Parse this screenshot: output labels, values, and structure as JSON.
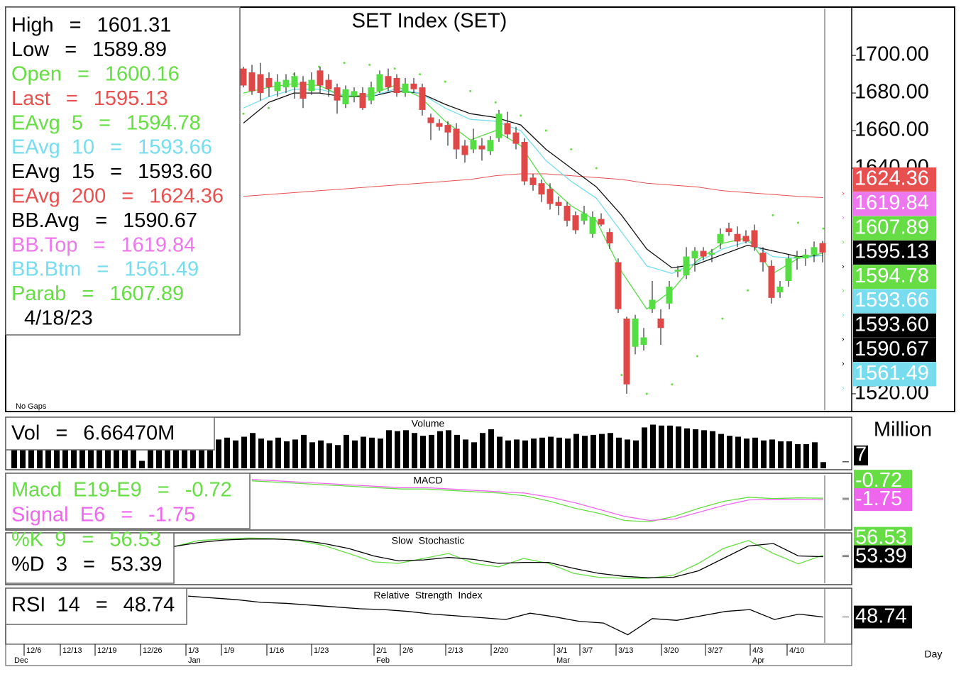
{
  "chart_data": {
    "type": "candlestick",
    "title": "SET Index (SET)",
    "note": "No Gaps",
    "date": "4/18/23",
    "equals": "=",
    "info": [
      {
        "label": "High",
        "value": "1601.31",
        "color": "#000000"
      },
      {
        "label": "Low",
        "value": "1589.89",
        "color": "#000000"
      },
      {
        "label": "Open",
        "value": "1600.16",
        "color": "#66dd44"
      },
      {
        "label": "Last",
        "value": "1595.13",
        "color": "#e85050",
        "box": "#000000"
      },
      {
        "label": "EAvg  5",
        "value": "1594.78",
        "color": "#66dd44",
        "box": "#66dd44"
      },
      {
        "label": "EAvg  10",
        "value": "1593.66",
        "color": "#77ddee",
        "box": "#77ddee"
      },
      {
        "label": "EAvg  15",
        "value": "1593.60",
        "color": "#000000",
        "box": "#000000"
      },
      {
        "label": "EAvg  200",
        "value": "1624.36",
        "color": "#e85050",
        "box": "#e85050"
      },
      {
        "label": "BB.Avg",
        "value": "1590.67",
        "color": "#000000",
        "box": "#000000"
      },
      {
        "label": "BB.Top",
        "value": "1619.84",
        "color": "#ee77ee",
        "box": "#ee77ee"
      },
      {
        "label": "BB.Btm",
        "value": "1561.49",
        "color": "#77ddee",
        "box": "#77ddee"
      },
      {
        "label": "Parab",
        "value": "1607.89",
        "color": "#66dd44",
        "box": "#66dd44"
      }
    ],
    "ylim": [
      1511.3,
      1725.7
    ],
    "yticks": [
      {
        "value": 1520,
        "label": "1520.00"
      },
      {
        "value": 1640,
        "label": "1640.00"
      },
      {
        "value": 1660,
        "label": "1660.00"
      },
      {
        "value": 1680,
        "label": "1680.00"
      },
      {
        "value": 1700,
        "label": "1700.00"
      }
    ],
    "up_color": "#55dd44",
    "down_color": "#e04848",
    "candles": {
      "open": [
        1693,
        1691,
        1690,
        1688,
        1681,
        1683,
        1683,
        1686,
        1681,
        1692,
        1687,
        1683,
        1674,
        1678,
        1680,
        1676,
        1681,
        1689,
        1688,
        1680,
        1685,
        1683,
        1667,
        1664,
        1663,
        1661,
        1652,
        1650,
        1652,
        1649,
        1656,
        1664,
        1659,
        1654,
        1635,
        1632,
        1629,
        1622,
        1620,
        1615,
        1612,
        1605,
        1613,
        1606,
        1590,
        1560,
        1545,
        1546,
        1565,
        1560,
        1568,
        1585,
        1583,
        1592,
        1596,
        1594,
        1600,
        1608,
        1605,
        1604,
        1607,
        1595,
        1588,
        1574,
        1580,
        1592,
        1592,
        1594,
        1600.16
      ],
      "high": [
        1694,
        1695,
        1696,
        1691,
        1690,
        1690,
        1691,
        1689,
        1691,
        1694,
        1690,
        1685,
        1684,
        1683,
        1683,
        1686,
        1692,
        1693,
        1690,
        1688,
        1688,
        1685,
        1669,
        1666,
        1665,
        1664,
        1655,
        1661,
        1656,
        1657,
        1671,
        1670,
        1662,
        1656,
        1637,
        1634,
        1632,
        1625,
        1622,
        1617,
        1620,
        1617,
        1616,
        1608,
        1592,
        1561,
        1562,
        1555,
        1580,
        1565,
        1580,
        1588,
        1598,
        1598,
        1598,
        1597,
        1608,
        1611,
        1609,
        1607,
        1610,
        1598,
        1591,
        1580,
        1594,
        1596,
        1597,
        1601,
        1601.31
      ],
      "low": [
        1683,
        1679,
        1676,
        1678,
        1678,
        1680,
        1677,
        1672,
        1679,
        1680,
        1678,
        1669,
        1672,
        1675,
        1671,
        1674,
        1680,
        1681,
        1678,
        1678,
        1680,
        1668,
        1655,
        1660,
        1652,
        1645,
        1643,
        1648,
        1644,
        1647,
        1654,
        1656,
        1650,
        1631,
        1628,
        1622,
        1618,
        1615,
        1609,
        1605,
        1610,
        1603,
        1609,
        1597,
        1563,
        1520,
        1541,
        1543,
        1563,
        1546,
        1565,
        1582,
        1581,
        1585,
        1591,
        1590,
        1597,
        1604,
        1598,
        1600,
        1596,
        1585,
        1568,
        1571,
        1577,
        1586,
        1588,
        1590,
        1589.89
      ],
      "close": [
        1684,
        1681,
        1680,
        1683,
        1686,
        1687,
        1689,
        1677,
        1687,
        1684,
        1682,
        1676,
        1682,
        1681,
        1672,
        1683,
        1690,
        1683,
        1680,
        1685,
        1682,
        1671,
        1664,
        1662,
        1659,
        1650,
        1647,
        1655,
        1650,
        1655,
        1669,
        1658,
        1653,
        1633,
        1631,
        1626,
        1621,
        1620,
        1612,
        1607,
        1616,
        1614,
        1610,
        1600,
        1565,
        1525,
        1560,
        1550,
        1570,
        1555,
        1577,
        1586,
        1593,
        1596,
        1593,
        1595,
        1605,
        1606,
        1601,
        1601,
        1598,
        1590,
        1571,
        1577,
        1592,
        1593,
        1594,
        1598,
        1595.13
      ]
    },
    "overlays": [
      {
        "style": "line",
        "color": "#e85050",
        "width": 1,
        "values": [
          1625,
          1626,
          1627,
          1628,
          1629,
          1630,
          1631,
          1632,
          1633,
          1634,
          1636,
          1637,
          1637,
          1636,
          1635,
          1634,
          1632,
          1631,
          1630,
          1628,
          1627,
          1626,
          1625,
          1624.36
        ]
      },
      {
        "style": "line",
        "color": "#111111",
        "width": 1.3,
        "values": [
          1664,
          1675,
          1680,
          1680,
          1678,
          1678,
          1681,
          1680,
          1674,
          1669,
          1667,
          1663,
          1650,
          1640,
          1630,
          1615,
          1597,
          1587,
          1589,
          1594,
          1599,
          1596,
          1593,
          1593.6
        ]
      },
      {
        "style": "line",
        "color": "#77ddee",
        "width": 1.3,
        "values": [
          1672,
          1678,
          1682,
          1682,
          1679,
          1678,
          1682,
          1680,
          1672,
          1666,
          1665,
          1660,
          1644,
          1633,
          1624,
          1606,
          1588,
          1584,
          1590,
          1597,
          1601,
          1593,
          1592,
          1593.66
        ]
      },
      {
        "style": "line",
        "color": "#55dd44",
        "width": 1.3,
        "values": [
          1680,
          1683,
          1685,
          1684,
          1678,
          1679,
          1684,
          1678,
          1665,
          1655,
          1660,
          1652,
          1632,
          1620,
          1612,
          1585,
          1565,
          1575,
          1591,
          1600,
          1603,
          1584,
          1592,
          1594.78
        ]
      },
      {
        "style": "dots",
        "color": "#66dd44",
        "width": 1.5,
        "values": [
          1669,
          1672,
          1690,
          1694,
          1696,
          1695,
          1693,
          1690,
          1686,
          1681,
          1675,
          1668,
          1660,
          1650,
          1640,
          1530,
          1520,
          1525,
          1540,
          1560,
          1575,
          1615,
          1611,
          1607.89
        ]
      }
    ],
    "x_labels": [
      "12/6",
      "12/13",
      "12/19",
      "12/26",
      "1/3",
      "1/9",
      "1/16",
      "1/23",
      "2/1",
      "2/6",
      "2/13",
      "2/20",
      "3/1",
      "3/7",
      "3/13",
      "3/20",
      "3/27",
      "4/3",
      "4/10"
    ],
    "months": [
      "Dec",
      "Jan",
      "Feb",
      "Mar",
      "Apr"
    ],
    "x_title": "Day",
    "volume": {
      "title": "Volume",
      "label": "Vol",
      "readout": "6.66470M",
      "unit": "Million",
      "color": "#000000",
      "ylim": [
        0,
        55
      ],
      "yticks": [
        7
      ],
      "values": [
        28,
        30,
        26,
        32,
        29,
        27,
        25,
        31,
        28,
        24,
        26,
        30,
        33,
        28,
        27,
        8,
        29,
        31,
        26,
        28,
        30,
        27,
        29,
        32,
        31,
        33,
        30,
        34,
        38,
        32,
        30,
        33,
        29,
        31,
        36,
        28,
        30,
        27,
        25,
        36,
        30,
        34,
        33,
        32,
        41,
        40,
        41,
        38,
        35,
        36,
        40,
        41,
        36,
        31,
        28,
        38,
        42,
        34,
        30,
        31,
        30,
        32,
        33,
        34,
        33,
        32,
        37,
        35,
        36,
        37,
        38,
        33,
        31,
        30,
        44,
        47,
        46,
        46,
        45,
        43,
        42,
        41,
        40,
        37,
        35,
        34,
        32,
        33,
        30,
        31,
        29,
        29,
        26,
        26,
        28,
        6.6647
      ]
    },
    "macd": {
      "title": "MACD",
      "ylim": [
        -23,
        16
      ],
      "series": [
        {
          "label": "Macd  E19-E9",
          "readout": "-0.72",
          "color": "#66dd44",
          "values": [
            12,
            11,
            10,
            9,
            8,
            7,
            6,
            6,
            5,
            4,
            3,
            1,
            -3,
            -8,
            -12,
            -17,
            -18,
            -14,
            -8,
            -3,
            0,
            -1,
            -0.5,
            -0.72
          ]
        },
        {
          "label": "Signal  E6",
          "readout": "-1.75",
          "color": "#ee66ee",
          "values": [
            13,
            12,
            11,
            10,
            9,
            8,
            7,
            7,
            6,
            5,
            4,
            3,
            0,
            -4,
            -9,
            -14,
            -17,
            -16,
            -11,
            -6,
            -2,
            -1.5,
            -1.6,
            -1.75
          ]
        }
      ]
    },
    "stochastic": {
      "title": "Slow  Stochastic",
      "ylim": [
        0,
        100
      ],
      "series": [
        {
          "label": "%K  9",
          "readout": "56.53",
          "color": "#66dd44",
          "values": [
            74,
            86,
            89,
            91,
            90,
            86,
            76,
            60,
            43,
            40,
            50,
            60,
            40,
            33,
            50,
            40,
            20,
            12,
            10,
            10,
            16,
            40,
            70,
            86,
            60,
            39,
            56.53
          ]
        },
        {
          "label": "%D  3",
          "readout": "53.39",
          "color": "#000000",
          "values": [
            74,
            82,
            87,
            89,
            89,
            87,
            80,
            70,
            55,
            45,
            47,
            52,
            48,
            40,
            42,
            42,
            30,
            20,
            14,
            11,
            12,
            25,
            50,
            75,
            80,
            55,
            53.39
          ]
        }
      ]
    },
    "rsi": {
      "title": "Relative  Strength  Index",
      "ylim": [
        20,
        80
      ],
      "series": [
        {
          "label": "RSI  14",
          "readout": "48.74",
          "color": "#000000",
          "values": [
            72,
            70,
            68,
            65,
            64,
            62,
            60,
            58,
            57,
            55,
            52,
            50,
            48,
            46,
            53,
            49,
            44,
            42,
            29,
            47,
            45,
            50,
            55,
            57,
            46,
            52,
            48.74
          ]
        }
      ]
    }
  }
}
